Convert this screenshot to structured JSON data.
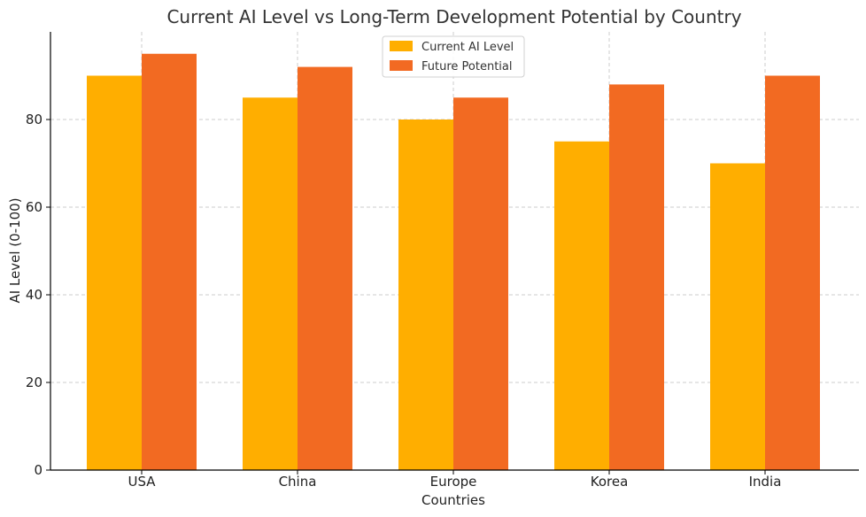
{
  "chart_data": {
    "type": "bar",
    "title": "Current AI Level vs Long-Term Development Potential by Country",
    "xlabel": "Countries",
    "ylabel": "AI Level (0-100)",
    "categories": [
      "USA",
      "China",
      "Europe",
      "Korea",
      "India"
    ],
    "series": [
      {
        "name": "Current AI Level",
        "values": [
          90,
          85,
          80,
          75,
          70
        ],
        "color": "#FFAE00"
      },
      {
        "name": "Future Potential",
        "values": [
          95,
          92,
          85,
          88,
          90
        ],
        "color": "#F26A22"
      }
    ],
    "ylim": [
      0,
      100
    ],
    "yticks": [
      0,
      20,
      40,
      60,
      80
    ],
    "grid": true,
    "legend_position": "top-center"
  }
}
